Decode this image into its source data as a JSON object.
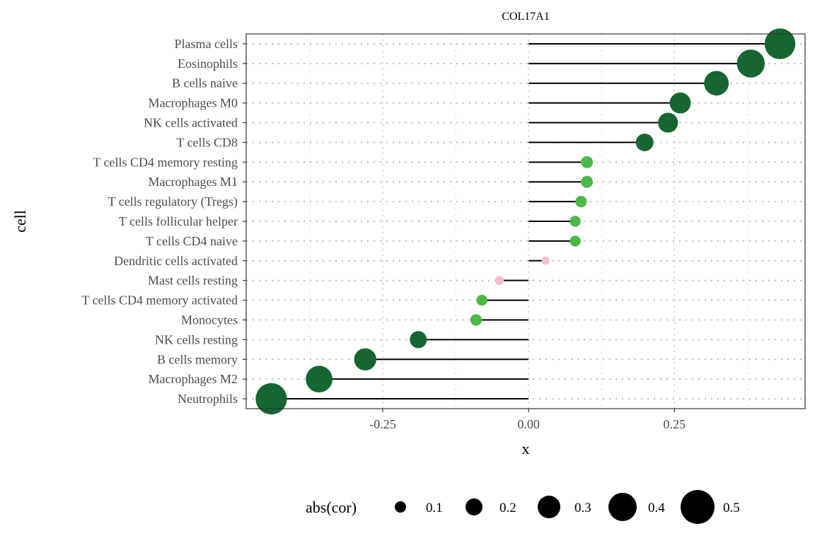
{
  "chart_data": {
    "type": "scatter",
    "subtype": "lollipop",
    "title": "COL17A1",
    "xlabel": "x",
    "ylabel": "cell",
    "xlim": [
      -0.484,
      0.474
    ],
    "xticks": [
      -0.25,
      0.0,
      0.25
    ],
    "xtick_labels": [
      "-0.25",
      "0.00",
      "0.25"
    ],
    "grid": true,
    "legend": {
      "title": "abs(cor)",
      "position": "bottom",
      "entries": [
        {
          "label": "0.1",
          "value": 0.1
        },
        {
          "label": "0.2",
          "value": 0.2
        },
        {
          "label": "0.3",
          "value": 0.3
        },
        {
          "label": "0.4",
          "value": 0.4
        },
        {
          "label": "0.5",
          "value": 0.5
        }
      ]
    },
    "colors": {
      "strong": "#156630",
      "weak": "#4db847",
      "nonsig": "#f8bfcc",
      "segment": "#000000",
      "grid": "#b3b3b3",
      "panel_border": "#333333"
    },
    "categories": [
      "Plasma cells",
      "Eosinophils",
      "B cells naive",
      "Macrophages M0",
      "NK cells activated",
      "T cells CD8",
      "T cells CD4 memory resting",
      "Macrophages M1",
      "T cells regulatory (Tregs)",
      "T cells follicular helper",
      "T cells CD4 naive",
      "Dendritic cells activated",
      "Mast cells resting",
      "T cells CD4 memory activated",
      "Monocytes",
      "NK cells resting",
      "B cells memory",
      "Macrophages M2",
      "Neutrophils"
    ],
    "values": [
      0.431,
      0.381,
      0.322,
      0.26,
      0.239,
      0.199,
      0.1,
      0.1,
      0.09,
      0.08,
      0.08,
      0.029,
      -0.05,
      -0.08,
      -0.09,
      -0.189,
      -0.28,
      -0.359,
      -0.441
    ],
    "color_group": [
      "strong",
      "strong",
      "strong",
      "strong",
      "strong",
      "strong",
      "weak",
      "weak",
      "weak",
      "weak",
      "weak",
      "nonsig",
      "nonsig",
      "weak",
      "weak",
      "strong",
      "strong",
      "strong",
      "strong"
    ]
  }
}
